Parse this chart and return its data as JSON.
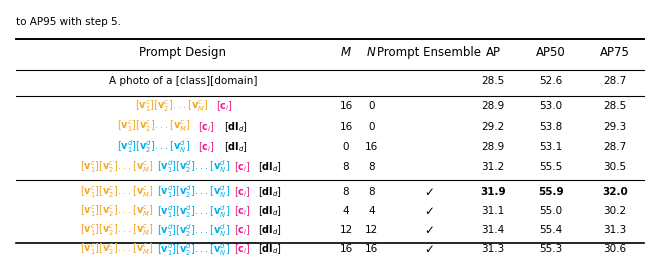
{
  "title_text": "to AP95 with step 5.",
  "col_headers": [
    "Prompt Design",
    "M",
    "N",
    "Prompt Ensemble",
    "AP",
    "AP50",
    "AP75"
  ],
  "baseline_row": {
    "prompt": "A photo of a [class][domain]",
    "M": "",
    "N": "",
    "ensemble": "",
    "AP": "28.5",
    "AP50": "52.6",
    "AP75": "28.7"
  },
  "group1": [
    {
      "M": "16",
      "N": "0",
      "ensemble": "",
      "AP": "28.9",
      "AP50": "53.0",
      "AP75": "28.5"
    },
    {
      "M": "16",
      "N": "0",
      "ensemble": "",
      "AP": "29.2",
      "AP50": "53.8",
      "AP75": "29.3"
    },
    {
      "M": "0",
      "N": "16",
      "ensemble": "",
      "AP": "28.9",
      "AP50": "53.1",
      "AP75": "28.7"
    },
    {
      "M": "8",
      "N": "8",
      "ensemble": "",
      "AP": "31.2",
      "AP50": "55.5",
      "AP75": "30.5"
    }
  ],
  "group2": [
    {
      "M": "8",
      "N": "8",
      "ensemble": "✓",
      "AP": "31.9",
      "AP50": "55.9",
      "AP75": "32.0",
      "bold": true
    },
    {
      "M": "4",
      "N": "4",
      "ensemble": "✓",
      "AP": "31.1",
      "AP50": "55.0",
      "AP75": "30.2",
      "bold": false
    },
    {
      "M": "12",
      "N": "12",
      "ensemble": "✓",
      "AP": "31.4",
      "AP50": "55.4",
      "AP75": "31.3",
      "bold": false
    },
    {
      "M": "16",
      "N": "16",
      "ensemble": "✓",
      "AP": "31.3",
      "AP50": "55.3",
      "AP75": "30.6",
      "bold": false
    }
  ],
  "orange_color": "#F5A623",
  "cyan_color": "#00AEEF",
  "magenta_color": "#E91E8C",
  "dark_color": "#1A1A2E",
  "bg_color": "#FFFFFF"
}
